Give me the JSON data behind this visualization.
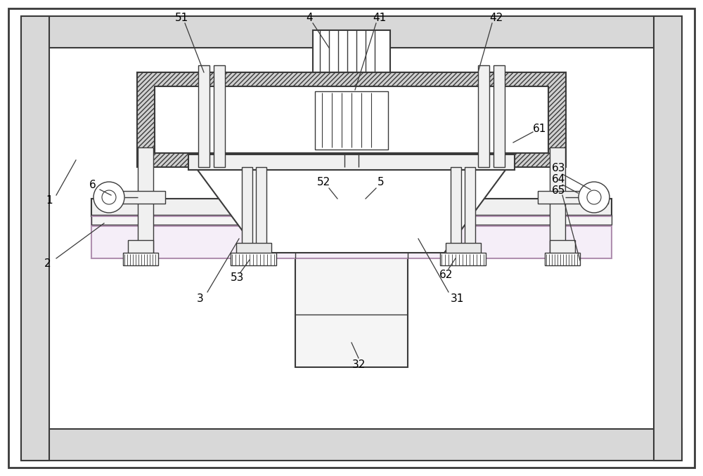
{
  "bg": "#ffffff",
  "lc": "#3a3a3a",
  "lc_thin": "#555555",
  "pink": "#e8c8d8",
  "hatch_gray": "#c0c0c0",
  "fig_w": 10.0,
  "fig_h": 6.78
}
